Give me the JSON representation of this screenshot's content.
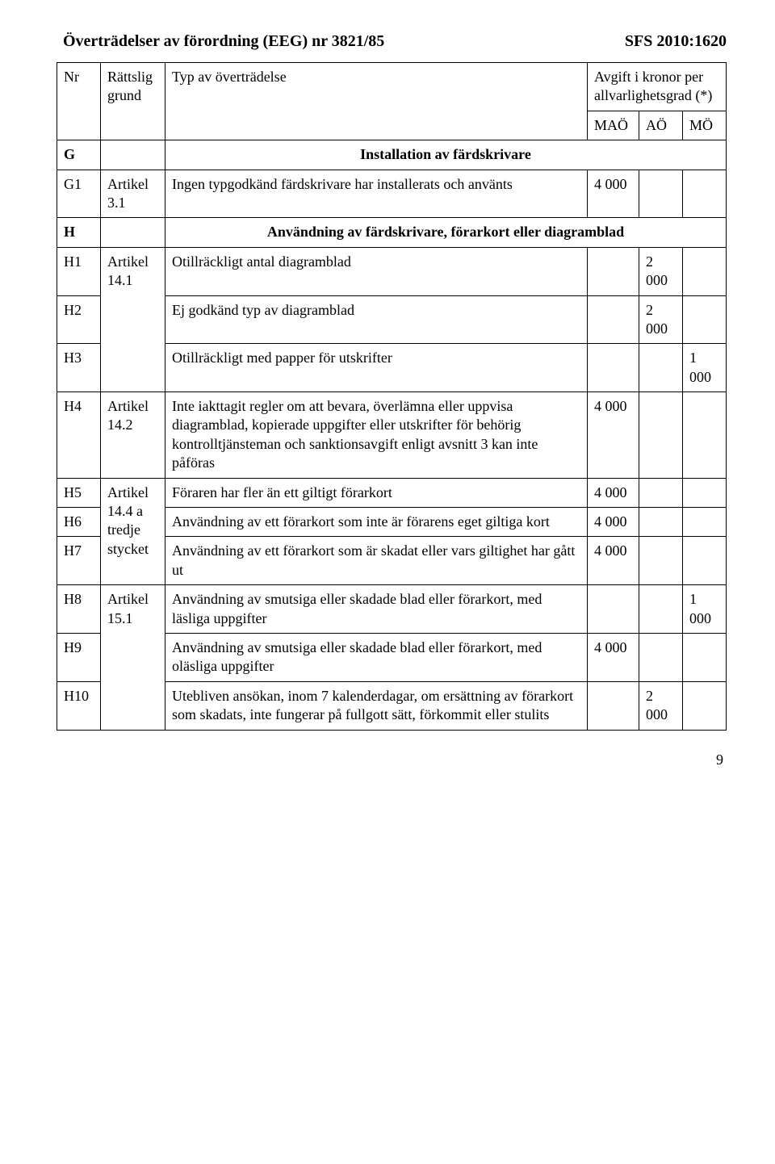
{
  "header": {
    "left": "Överträdelser av förordning (EEG) nr 3821/85",
    "right": "SFS 2010:1620"
  },
  "cols": {
    "nr": "Nr",
    "grund": "Rättslig grund",
    "typ": "Typ av överträdelse",
    "avgift": "Avgift i kronor per allvarlighetsgrad (*)",
    "mao": "MAÖ",
    "ao": "AÖ",
    "mo": "MÖ"
  },
  "sections": {
    "G": {
      "code": "G",
      "title": "Installation av färdskrivare"
    },
    "H": {
      "code": "H",
      "title": "Användning av färdskrivare, förarkort eller diagramblad"
    }
  },
  "rows": {
    "G1": {
      "nr": "G1",
      "grund": "Artikel 3.1",
      "typ": "Ingen typgodkänd färdskrivare har installerats och använts",
      "mao": "4 000"
    },
    "H1": {
      "nr": "H1",
      "grund": "Artikel 14.1",
      "typ": "Otillräckligt antal diagramblad",
      "ao": "2 000"
    },
    "H2": {
      "nr": "H2",
      "typ": "Ej godkänd typ av diagramblad",
      "ao": "2 000"
    },
    "H3": {
      "nr": "H3",
      "typ": "Otillräckligt med papper för utskrifter",
      "mo": "1 000"
    },
    "H4": {
      "nr": "H4",
      "grund": "Artikel 14.2",
      "typ": "Inte iakttagit regler om att bevara, överlämna eller uppvisa diagramblad, kopierade uppgifter eller utskrifter för behörig kontrolltjänsteman och sanktionsavgift enligt avsnitt 3 kan inte påföras",
      "mao": "4 000"
    },
    "H5": {
      "nr": "H5",
      "grund": "Artikel 14.4 a tredje stycket",
      "typ": "Föraren har fler än ett giltigt förarkort",
      "mao": "4 000"
    },
    "H6": {
      "nr": "H6",
      "typ": "Användning av ett förarkort som inte är förarens eget giltiga kort",
      "mao": "4 000"
    },
    "H7": {
      "nr": "H7",
      "typ": "Användning av ett förarkort som är skadat eller vars giltighet har gått ut",
      "mao": "4 000"
    },
    "H8": {
      "nr": "H8",
      "grund": "Artikel 15.1",
      "typ": "Användning av smutsiga eller skadade blad eller förarkort, med läsliga uppgifter",
      "mo": "1 000"
    },
    "H9": {
      "nr": "H9",
      "typ": "Användning av smutsiga eller skadade blad eller förarkort, med oläsliga uppgifter",
      "mao": "4 000"
    },
    "H10": {
      "nr": "H10",
      "typ": "Utebliven ansökan, inom 7 kalenderdagar, om ersättning av förarkort som skadats, inte fungerar på fullgott sätt, förkommit eller stulits",
      "ao": "2 000"
    }
  },
  "pageNumber": "9"
}
